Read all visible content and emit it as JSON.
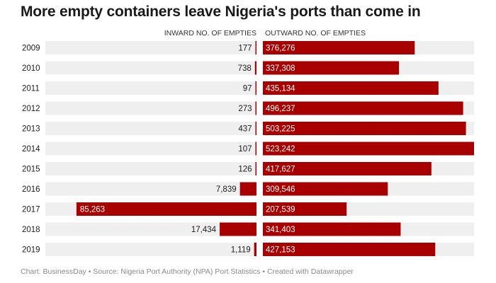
{
  "title": "More empty containers leave Nigeria's ports than come in",
  "footer": "Chart: BusinessDay • Source: Nigeria Port Authority (NPA) Port Statistics • Created with Datawrapper",
  "colors": {
    "bar": "#a80000",
    "track": "#efefef",
    "text": "#1a1a1a",
    "label_on_bar": "#ffffff"
  },
  "chart_data": {
    "type": "bar",
    "title": "More empty containers leave Nigeria's ports than come in",
    "categories": [
      "2009",
      "2010",
      "2011",
      "2012",
      "2013",
      "2014",
      "2015",
      "2016",
      "2017",
      "2018",
      "2019"
    ],
    "series": [
      {
        "name": "INWARD NO. OF EMPTIES",
        "values": [
          177,
          738,
          97,
          273,
          437,
          107,
          126,
          7839,
          85263,
          17434,
          1119
        ],
        "labels": [
          "177",
          "738",
          "97",
          "273",
          "437",
          "107",
          "126",
          "7,839",
          "85,263",
          "17,434",
          "1,119"
        ]
      },
      {
        "name": "OUTWARD NO. OF EMPTIES",
        "values": [
          376276,
          337308,
          435134,
          496237,
          503225,
          523242,
          417627,
          309546,
          207539,
          341403,
          427153
        ],
        "labels": [
          "376,276",
          "337,308",
          "435,134",
          "496,237",
          "503,225",
          "523,242",
          "417,627",
          "309,546",
          "207,539",
          "341,403",
          "427,153"
        ]
      }
    ],
    "inward_max": 100000,
    "outward_max": 523242
  }
}
